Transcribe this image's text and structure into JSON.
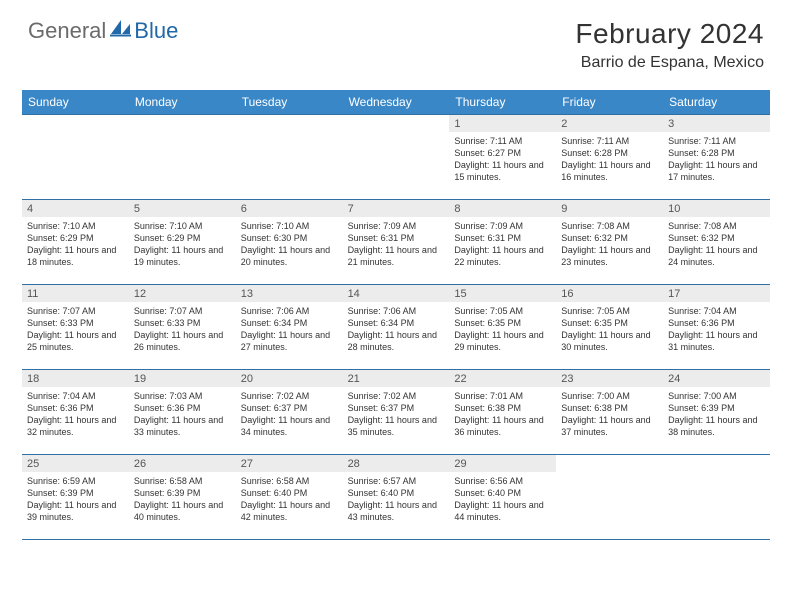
{
  "brand": {
    "text_general": "General",
    "text_blue": "Blue",
    "icon_fill": "#2068a8"
  },
  "title": "February 2024",
  "location": "Barrio de Espana, Mexico",
  "colors": {
    "header_bg": "#3a87c7",
    "header_text": "#ffffff",
    "row_divider": "#2f6fa3",
    "daynum_bg": "#ececec",
    "body_text": "#333333",
    "page_bg": "#ffffff"
  },
  "day_headers": [
    "Sunday",
    "Monday",
    "Tuesday",
    "Wednesday",
    "Thursday",
    "Friday",
    "Saturday"
  ],
  "weeks": [
    [
      {
        "day": "",
        "sunrise": "",
        "sunset": "",
        "daylight": ""
      },
      {
        "day": "",
        "sunrise": "",
        "sunset": "",
        "daylight": ""
      },
      {
        "day": "",
        "sunrise": "",
        "sunset": "",
        "daylight": ""
      },
      {
        "day": "",
        "sunrise": "",
        "sunset": "",
        "daylight": ""
      },
      {
        "day": "1",
        "sunrise": "Sunrise: 7:11 AM",
        "sunset": "Sunset: 6:27 PM",
        "daylight": "Daylight: 11 hours and 15 minutes."
      },
      {
        "day": "2",
        "sunrise": "Sunrise: 7:11 AM",
        "sunset": "Sunset: 6:28 PM",
        "daylight": "Daylight: 11 hours and 16 minutes."
      },
      {
        "day": "3",
        "sunrise": "Sunrise: 7:11 AM",
        "sunset": "Sunset: 6:28 PM",
        "daylight": "Daylight: 11 hours and 17 minutes."
      }
    ],
    [
      {
        "day": "4",
        "sunrise": "Sunrise: 7:10 AM",
        "sunset": "Sunset: 6:29 PM",
        "daylight": "Daylight: 11 hours and 18 minutes."
      },
      {
        "day": "5",
        "sunrise": "Sunrise: 7:10 AM",
        "sunset": "Sunset: 6:29 PM",
        "daylight": "Daylight: 11 hours and 19 minutes."
      },
      {
        "day": "6",
        "sunrise": "Sunrise: 7:10 AM",
        "sunset": "Sunset: 6:30 PM",
        "daylight": "Daylight: 11 hours and 20 minutes."
      },
      {
        "day": "7",
        "sunrise": "Sunrise: 7:09 AM",
        "sunset": "Sunset: 6:31 PM",
        "daylight": "Daylight: 11 hours and 21 minutes."
      },
      {
        "day": "8",
        "sunrise": "Sunrise: 7:09 AM",
        "sunset": "Sunset: 6:31 PM",
        "daylight": "Daylight: 11 hours and 22 minutes."
      },
      {
        "day": "9",
        "sunrise": "Sunrise: 7:08 AM",
        "sunset": "Sunset: 6:32 PM",
        "daylight": "Daylight: 11 hours and 23 minutes."
      },
      {
        "day": "10",
        "sunrise": "Sunrise: 7:08 AM",
        "sunset": "Sunset: 6:32 PM",
        "daylight": "Daylight: 11 hours and 24 minutes."
      }
    ],
    [
      {
        "day": "11",
        "sunrise": "Sunrise: 7:07 AM",
        "sunset": "Sunset: 6:33 PM",
        "daylight": "Daylight: 11 hours and 25 minutes."
      },
      {
        "day": "12",
        "sunrise": "Sunrise: 7:07 AM",
        "sunset": "Sunset: 6:33 PM",
        "daylight": "Daylight: 11 hours and 26 minutes."
      },
      {
        "day": "13",
        "sunrise": "Sunrise: 7:06 AM",
        "sunset": "Sunset: 6:34 PM",
        "daylight": "Daylight: 11 hours and 27 minutes."
      },
      {
        "day": "14",
        "sunrise": "Sunrise: 7:06 AM",
        "sunset": "Sunset: 6:34 PM",
        "daylight": "Daylight: 11 hours and 28 minutes."
      },
      {
        "day": "15",
        "sunrise": "Sunrise: 7:05 AM",
        "sunset": "Sunset: 6:35 PM",
        "daylight": "Daylight: 11 hours and 29 minutes."
      },
      {
        "day": "16",
        "sunrise": "Sunrise: 7:05 AM",
        "sunset": "Sunset: 6:35 PM",
        "daylight": "Daylight: 11 hours and 30 minutes."
      },
      {
        "day": "17",
        "sunrise": "Sunrise: 7:04 AM",
        "sunset": "Sunset: 6:36 PM",
        "daylight": "Daylight: 11 hours and 31 minutes."
      }
    ],
    [
      {
        "day": "18",
        "sunrise": "Sunrise: 7:04 AM",
        "sunset": "Sunset: 6:36 PM",
        "daylight": "Daylight: 11 hours and 32 minutes."
      },
      {
        "day": "19",
        "sunrise": "Sunrise: 7:03 AM",
        "sunset": "Sunset: 6:36 PM",
        "daylight": "Daylight: 11 hours and 33 minutes."
      },
      {
        "day": "20",
        "sunrise": "Sunrise: 7:02 AM",
        "sunset": "Sunset: 6:37 PM",
        "daylight": "Daylight: 11 hours and 34 minutes."
      },
      {
        "day": "21",
        "sunrise": "Sunrise: 7:02 AM",
        "sunset": "Sunset: 6:37 PM",
        "daylight": "Daylight: 11 hours and 35 minutes."
      },
      {
        "day": "22",
        "sunrise": "Sunrise: 7:01 AM",
        "sunset": "Sunset: 6:38 PM",
        "daylight": "Daylight: 11 hours and 36 minutes."
      },
      {
        "day": "23",
        "sunrise": "Sunrise: 7:00 AM",
        "sunset": "Sunset: 6:38 PM",
        "daylight": "Daylight: 11 hours and 37 minutes."
      },
      {
        "day": "24",
        "sunrise": "Sunrise: 7:00 AM",
        "sunset": "Sunset: 6:39 PM",
        "daylight": "Daylight: 11 hours and 38 minutes."
      }
    ],
    [
      {
        "day": "25",
        "sunrise": "Sunrise: 6:59 AM",
        "sunset": "Sunset: 6:39 PM",
        "daylight": "Daylight: 11 hours and 39 minutes."
      },
      {
        "day": "26",
        "sunrise": "Sunrise: 6:58 AM",
        "sunset": "Sunset: 6:39 PM",
        "daylight": "Daylight: 11 hours and 40 minutes."
      },
      {
        "day": "27",
        "sunrise": "Sunrise: 6:58 AM",
        "sunset": "Sunset: 6:40 PM",
        "daylight": "Daylight: 11 hours and 42 minutes."
      },
      {
        "day": "28",
        "sunrise": "Sunrise: 6:57 AM",
        "sunset": "Sunset: 6:40 PM",
        "daylight": "Daylight: 11 hours and 43 minutes."
      },
      {
        "day": "29",
        "sunrise": "Sunrise: 6:56 AM",
        "sunset": "Sunset: 6:40 PM",
        "daylight": "Daylight: 11 hours and 44 minutes."
      },
      {
        "day": "",
        "sunrise": "",
        "sunset": "",
        "daylight": ""
      },
      {
        "day": "",
        "sunrise": "",
        "sunset": "",
        "daylight": ""
      }
    ]
  ]
}
